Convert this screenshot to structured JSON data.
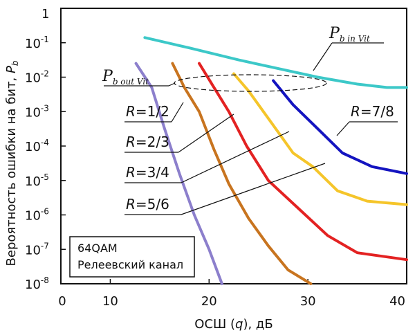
{
  "chart_data": {
    "type": "line",
    "xlabel": "ОСШ (q), дБ",
    "xlabel_parts": [
      "ОСШ (",
      "q",
      "), дБ"
    ],
    "ylabel": "Вероятность ошибки на бит, P_b",
    "ylabel_parts": [
      "Вероятность ошибки на бит, ",
      "P",
      "b"
    ],
    "xlim": [
      5,
      40
    ],
    "ylim_log10": [
      -8,
      0
    ],
    "x_ticks": [
      0,
      10,
      20,
      30,
      40
    ],
    "y_ticks": [
      {
        "value": 0,
        "label": "1",
        "base": "1",
        "exp": ""
      },
      {
        "value": -1,
        "label": "10^-1",
        "base": "10",
        "exp": "-1"
      },
      {
        "value": -2,
        "label": "10^-2",
        "base": "10",
        "exp": "-2"
      },
      {
        "value": -3,
        "label": "10^-3",
        "base": "10",
        "exp": "-3"
      },
      {
        "value": -4,
        "label": "10^-4",
        "base": "10",
        "exp": "-4"
      },
      {
        "value": -5,
        "label": "10^-5",
        "base": "10",
        "exp": "-5"
      },
      {
        "value": -6,
        "label": "10^-6",
        "base": "10",
        "exp": "-6"
      },
      {
        "value": -7,
        "label": "10^-7",
        "base": "10",
        "exp": "-7"
      },
      {
        "value": -8,
        "label": "10^-8",
        "base": "10",
        "exp": "-8"
      }
    ],
    "series": [
      {
        "name": "P_b in Vit",
        "color": "#3CC8C8",
        "points": [
          [
            13.5,
            -0.85
          ],
          [
            18,
            -1.15
          ],
          [
            23,
            -1.5
          ],
          [
            27,
            -1.75
          ],
          [
            31,
            -2.0
          ],
          [
            35,
            -2.2
          ],
          [
            38,
            -2.3
          ],
          [
            40,
            -2.3
          ]
        ]
      },
      {
        "name": "R=1/2",
        "color": "#8C7FCC",
        "points": [
          [
            12.6,
            -1.6
          ],
          [
            14.2,
            -2.3
          ],
          [
            15.5,
            -3.5
          ],
          [
            17,
            -4.8
          ],
          [
            18.5,
            -6.0
          ],
          [
            20,
            -7.0
          ],
          [
            21.3,
            -8.0
          ]
        ]
      },
      {
        "name": "R=2/3",
        "color": "#C8741F",
        "points": [
          [
            16.3,
            -1.6
          ],
          [
            17.5,
            -2.3
          ],
          [
            19,
            -3.0
          ],
          [
            20.5,
            -4.1
          ],
          [
            22,
            -5.1
          ],
          [
            24,
            -6.1
          ],
          [
            26,
            -6.9
          ],
          [
            28,
            -7.6
          ],
          [
            30.3,
            -8.0
          ]
        ]
      },
      {
        "name": "R=3/4",
        "color": "#E32222",
        "points": [
          [
            19,
            -1.6
          ],
          [
            20.5,
            -2.3
          ],
          [
            22,
            -3.0
          ],
          [
            23.8,
            -4.0
          ],
          [
            26,
            -5.0
          ],
          [
            29,
            -5.8
          ],
          [
            32,
            -6.6
          ],
          [
            35,
            -7.1
          ],
          [
            40,
            -7.3
          ]
        ]
      },
      {
        "name": "R=5/6",
        "color": "#F5C52A",
        "points": [
          [
            22.5,
            -1.9
          ],
          [
            24,
            -2.4
          ],
          [
            25.5,
            -3.0
          ],
          [
            27,
            -3.6
          ],
          [
            28.5,
            -4.2
          ],
          [
            30.5,
            -4.6
          ],
          [
            33,
            -5.3
          ],
          [
            36,
            -5.6
          ],
          [
            40,
            -5.7
          ]
        ]
      },
      {
        "name": "R=7/8",
        "color": "#1414C0",
        "points": [
          [
            26.5,
            -2.1
          ],
          [
            28.5,
            -2.8
          ],
          [
            31,
            -3.5
          ],
          [
            33.5,
            -4.2
          ],
          [
            36.5,
            -4.6
          ],
          [
            40,
            -4.8
          ]
        ]
      }
    ],
    "annotations": {
      "pb_in": {
        "main": "P",
        "sub": "b in Vit"
      },
      "pb_out": {
        "main": "P",
        "sub": "b out Vit"
      },
      "rates": [
        {
          "label": "R=1/2",
          "r": "R",
          "rest": "=1/2",
          "series": "R=1/2"
        },
        {
          "label": "R=2/3",
          "r": "R",
          "rest": "=2/3",
          "series": "R=2/3"
        },
        {
          "label": "R=3/4",
          "r": "R",
          "rest": "=3/4",
          "series": "R=3/4"
        },
        {
          "label": "R=5/6",
          "r": "R",
          "rest": "=5/6",
          "series": "R=5/6"
        },
        {
          "label": "R=7/8",
          "r": "R",
          "rest": "=7/8",
          "series": "R=7/8"
        }
      ]
    },
    "legend_box": {
      "line1": "64QAM",
      "line2": "Релеевский канал"
    },
    "grid": false
  }
}
